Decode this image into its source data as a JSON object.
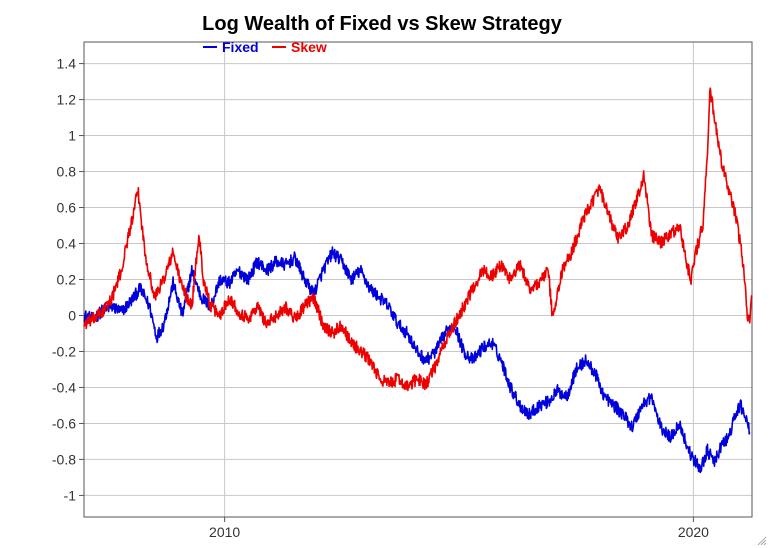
{
  "chart_data": {
    "type": "line",
    "title": "Log Wealth of Fixed vs Skew Strategy",
    "xlabel": "",
    "ylabel": "",
    "xlim": [
      2007.0,
      2021.25
    ],
    "ylim": [
      -1.12,
      1.52
    ],
    "x_ticks": [
      {
        "value": 2010,
        "label": "2010"
      },
      {
        "value": 2020,
        "label": "2020"
      }
    ],
    "y_ticks": [
      {
        "value": 1.4,
        "label": "1.4"
      },
      {
        "value": 1.2,
        "label": "1.2"
      },
      {
        "value": 1.0,
        "label": "1"
      },
      {
        "value": 0.8,
        "label": "0.8"
      },
      {
        "value": 0.6,
        "label": "0.6"
      },
      {
        "value": 0.4,
        "label": "0.4"
      },
      {
        "value": 0.2,
        "label": "0.2"
      },
      {
        "value": 0.0,
        "label": "0"
      },
      {
        "value": -0.2,
        "label": "-0.2"
      },
      {
        "value": -0.4,
        "label": "-0.4"
      },
      {
        "value": -0.6,
        "label": "-0.6"
      },
      {
        "value": -0.8,
        "label": "-0.8"
      },
      {
        "value": -1.0,
        "label": "-1"
      }
    ],
    "grid": true,
    "legend_position": "top-left",
    "series": [
      {
        "name": "Fixed",
        "color": "#0000dd",
        "points": [
          [
            2007.0,
            0.0
          ],
          [
            2007.2,
            -0.02
          ],
          [
            2007.4,
            0.03
          ],
          [
            2007.6,
            0.05
          ],
          [
            2007.8,
            0.02
          ],
          [
            2008.0,
            0.08
          ],
          [
            2008.2,
            0.15
          ],
          [
            2008.4,
            0.05
          ],
          [
            2008.55,
            -0.12
          ],
          [
            2008.7,
            -0.05
          ],
          [
            2008.9,
            0.18
          ],
          [
            2009.1,
            0.0
          ],
          [
            2009.3,
            0.25
          ],
          [
            2009.5,
            0.1
          ],
          [
            2009.7,
            0.05
          ],
          [
            2009.9,
            0.2
          ],
          [
            2010.1,
            0.18
          ],
          [
            2010.3,
            0.25
          ],
          [
            2010.5,
            0.2
          ],
          [
            2010.7,
            0.3
          ],
          [
            2010.9,
            0.25
          ],
          [
            2011.1,
            0.3
          ],
          [
            2011.3,
            0.28
          ],
          [
            2011.5,
            0.32
          ],
          [
            2011.7,
            0.2
          ],
          [
            2011.9,
            0.12
          ],
          [
            2012.1,
            0.25
          ],
          [
            2012.3,
            0.35
          ],
          [
            2012.5,
            0.3
          ],
          [
            2012.7,
            0.2
          ],
          [
            2012.9,
            0.25
          ],
          [
            2013.1,
            0.15
          ],
          [
            2013.3,
            0.1
          ],
          [
            2013.5,
            0.05
          ],
          [
            2013.7,
            -0.05
          ],
          [
            2013.9,
            -0.1
          ],
          [
            2014.1,
            -0.2
          ],
          [
            2014.3,
            -0.25
          ],
          [
            2014.5,
            -0.2
          ],
          [
            2014.7,
            -0.1
          ],
          [
            2014.9,
            -0.05
          ],
          [
            2015.1,
            -0.2
          ],
          [
            2015.3,
            -0.25
          ],
          [
            2015.5,
            -0.18
          ],
          [
            2015.7,
            -0.15
          ],
          [
            2015.9,
            -0.25
          ],
          [
            2016.1,
            -0.4
          ],
          [
            2016.3,
            -0.5
          ],
          [
            2016.5,
            -0.55
          ],
          [
            2016.7,
            -0.5
          ],
          [
            2016.9,
            -0.48
          ],
          [
            2017.1,
            -0.42
          ],
          [
            2017.3,
            -0.45
          ],
          [
            2017.5,
            -0.3
          ],
          [
            2017.7,
            -0.25
          ],
          [
            2017.9,
            -0.32
          ],
          [
            2018.1,
            -0.45
          ],
          [
            2018.3,
            -0.5
          ],
          [
            2018.5,
            -0.55
          ],
          [
            2018.7,
            -0.62
          ],
          [
            2018.9,
            -0.5
          ],
          [
            2019.1,
            -0.45
          ],
          [
            2019.3,
            -0.62
          ],
          [
            2019.5,
            -0.68
          ],
          [
            2019.7,
            -0.6
          ],
          [
            2019.9,
            -0.75
          ],
          [
            2020.0,
            -0.8
          ],
          [
            2020.15,
            -0.85
          ],
          [
            2020.3,
            -0.75
          ],
          [
            2020.45,
            -0.82
          ],
          [
            2020.6,
            -0.72
          ],
          [
            2020.75,
            -0.68
          ],
          [
            2020.9,
            -0.55
          ],
          [
            2021.0,
            -0.5
          ],
          [
            2021.1,
            -0.55
          ],
          [
            2021.2,
            -0.65
          ]
        ]
      },
      {
        "name": "Skew",
        "color": "#ee0000",
        "points": [
          [
            2007.0,
            -0.05
          ],
          [
            2007.2,
            -0.02
          ],
          [
            2007.4,
            0.02
          ],
          [
            2007.6,
            0.1
          ],
          [
            2007.8,
            0.25
          ],
          [
            2007.95,
            0.45
          ],
          [
            2008.05,
            0.55
          ],
          [
            2008.15,
            0.7
          ],
          [
            2008.3,
            0.35
          ],
          [
            2008.5,
            0.1
          ],
          [
            2008.7,
            0.2
          ],
          [
            2008.9,
            0.35
          ],
          [
            2009.1,
            0.15
          ],
          [
            2009.3,
            0.05
          ],
          [
            2009.45,
            0.45
          ],
          [
            2009.55,
            0.2
          ],
          [
            2009.7,
            0.05
          ],
          [
            2009.9,
            0.0
          ],
          [
            2010.1,
            0.1
          ],
          [
            2010.3,
            0.02
          ],
          [
            2010.5,
            -0.02
          ],
          [
            2010.7,
            0.05
          ],
          [
            2010.9,
            -0.05
          ],
          [
            2011.1,
            0.0
          ],
          [
            2011.3,
            0.05
          ],
          [
            2011.5,
            -0.02
          ],
          [
            2011.7,
            0.05
          ],
          [
            2011.9,
            0.1
          ],
          [
            2012.1,
            -0.05
          ],
          [
            2012.3,
            -0.1
          ],
          [
            2012.5,
            -0.05
          ],
          [
            2012.7,
            -0.15
          ],
          [
            2012.9,
            -0.2
          ],
          [
            2013.1,
            -0.25
          ],
          [
            2013.3,
            -0.35
          ],
          [
            2013.5,
            -0.38
          ],
          [
            2013.7,
            -0.35
          ],
          [
            2013.9,
            -0.4
          ],
          [
            2014.1,
            -0.35
          ],
          [
            2014.3,
            -0.38
          ],
          [
            2014.5,
            -0.28
          ],
          [
            2014.7,
            -0.15
          ],
          [
            2014.9,
            -0.05
          ],
          [
            2015.1,
            0.05
          ],
          [
            2015.3,
            0.15
          ],
          [
            2015.5,
            0.25
          ],
          [
            2015.7,
            0.22
          ],
          [
            2015.9,
            0.28
          ],
          [
            2016.1,
            0.2
          ],
          [
            2016.3,
            0.28
          ],
          [
            2016.5,
            0.15
          ],
          [
            2016.7,
            0.18
          ],
          [
            2016.9,
            0.25
          ],
          [
            2017.0,
            -0.02
          ],
          [
            2017.2,
            0.25
          ],
          [
            2017.4,
            0.35
          ],
          [
            2017.6,
            0.5
          ],
          [
            2017.8,
            0.62
          ],
          [
            2018.0,
            0.7
          ],
          [
            2018.2,
            0.55
          ],
          [
            2018.4,
            0.42
          ],
          [
            2018.6,
            0.5
          ],
          [
            2018.8,
            0.65
          ],
          [
            2018.95,
            0.78
          ],
          [
            2019.1,
            0.45
          ],
          [
            2019.3,
            0.4
          ],
          [
            2019.5,
            0.45
          ],
          [
            2019.7,
            0.5
          ],
          [
            2019.85,
            0.3
          ],
          [
            2019.95,
            0.2
          ],
          [
            2020.05,
            0.35
          ],
          [
            2020.2,
            0.5
          ],
          [
            2020.3,
            0.9
          ],
          [
            2020.35,
            1.25
          ],
          [
            2020.45,
            1.1
          ],
          [
            2020.6,
            0.85
          ],
          [
            2020.75,
            0.7
          ],
          [
            2020.9,
            0.55
          ],
          [
            2021.0,
            0.4
          ],
          [
            2021.1,
            0.2
          ],
          [
            2021.15,
            0.0
          ],
          [
            2021.2,
            -0.02
          ],
          [
            2021.25,
            0.1
          ]
        ]
      }
    ]
  },
  "ui": {
    "resize_grip_icon": "resize-grip-icon"
  }
}
